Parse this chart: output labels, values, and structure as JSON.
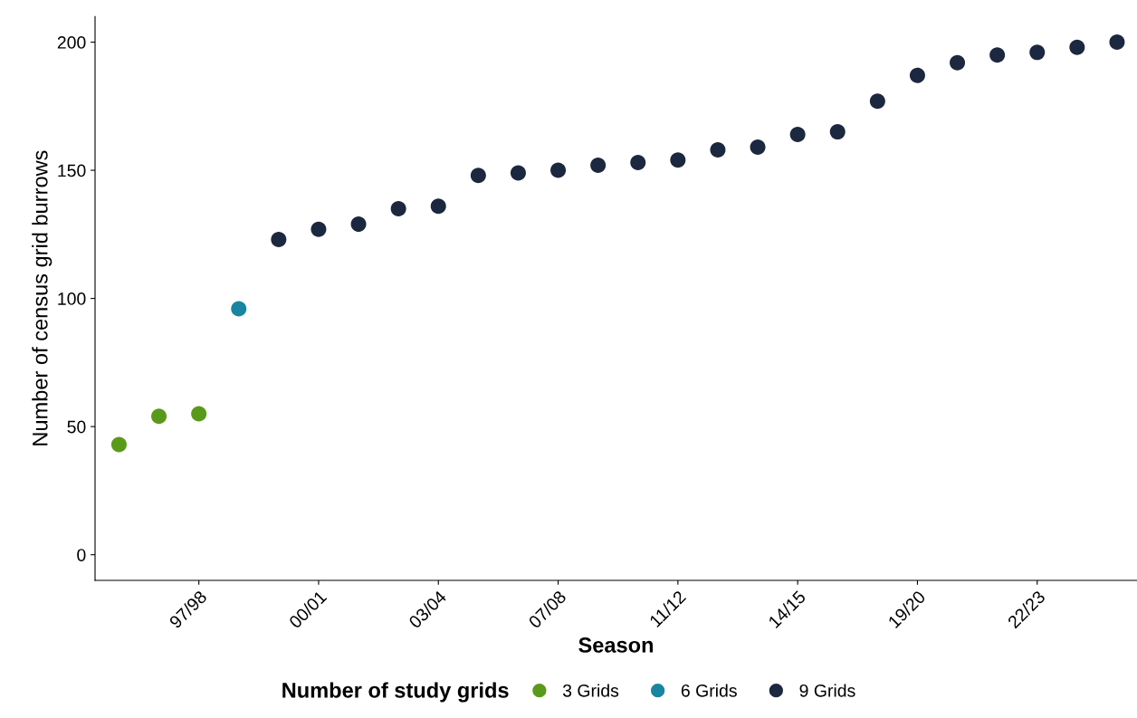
{
  "chart_data": {
    "type": "scatter",
    "xlabel": "Season",
    "ylabel": "Number of census grid burrows",
    "legend_title": "Number of study grids",
    "legend": "bottom",
    "grid": false,
    "marker": "circle",
    "categories": [
      null,
      null,
      "97/98",
      null,
      null,
      "00/01",
      null,
      null,
      "03/04",
      null,
      null,
      "07/08",
      null,
      null,
      "11/12",
      null,
      null,
      "14/15",
      null,
      null,
      "19/20",
      null,
      null,
      "22/23",
      null,
      null
    ],
    "ylim": [
      -10,
      210
    ],
    "yticks": [
      0,
      50,
      100,
      150,
      200
    ],
    "series": [
      {
        "name": "3 Grids",
        "color": "#5a9a1a",
        "values": [
          43,
          54,
          55,
          null,
          null,
          null,
          null,
          null,
          null,
          null,
          null,
          null,
          null,
          null,
          null,
          null,
          null,
          null,
          null,
          null,
          null,
          null,
          null,
          null,
          null,
          null
        ]
      },
      {
        "name": "6 Grids",
        "color": "#1a85a0",
        "values": [
          null,
          null,
          null,
          96,
          null,
          null,
          null,
          null,
          null,
          null,
          null,
          null,
          null,
          null,
          null,
          null,
          null,
          null,
          null,
          null,
          null,
          null,
          null,
          null,
          null,
          null
        ]
      },
      {
        "name": "9 Grids",
        "color": "#1c2840",
        "values": [
          null,
          null,
          null,
          null,
          123,
          127,
          129,
          135,
          136,
          148,
          149,
          150,
          152,
          153,
          154,
          158,
          159,
          164,
          165,
          177,
          187,
          192,
          195,
          196,
          198,
          200
        ]
      }
    ]
  }
}
